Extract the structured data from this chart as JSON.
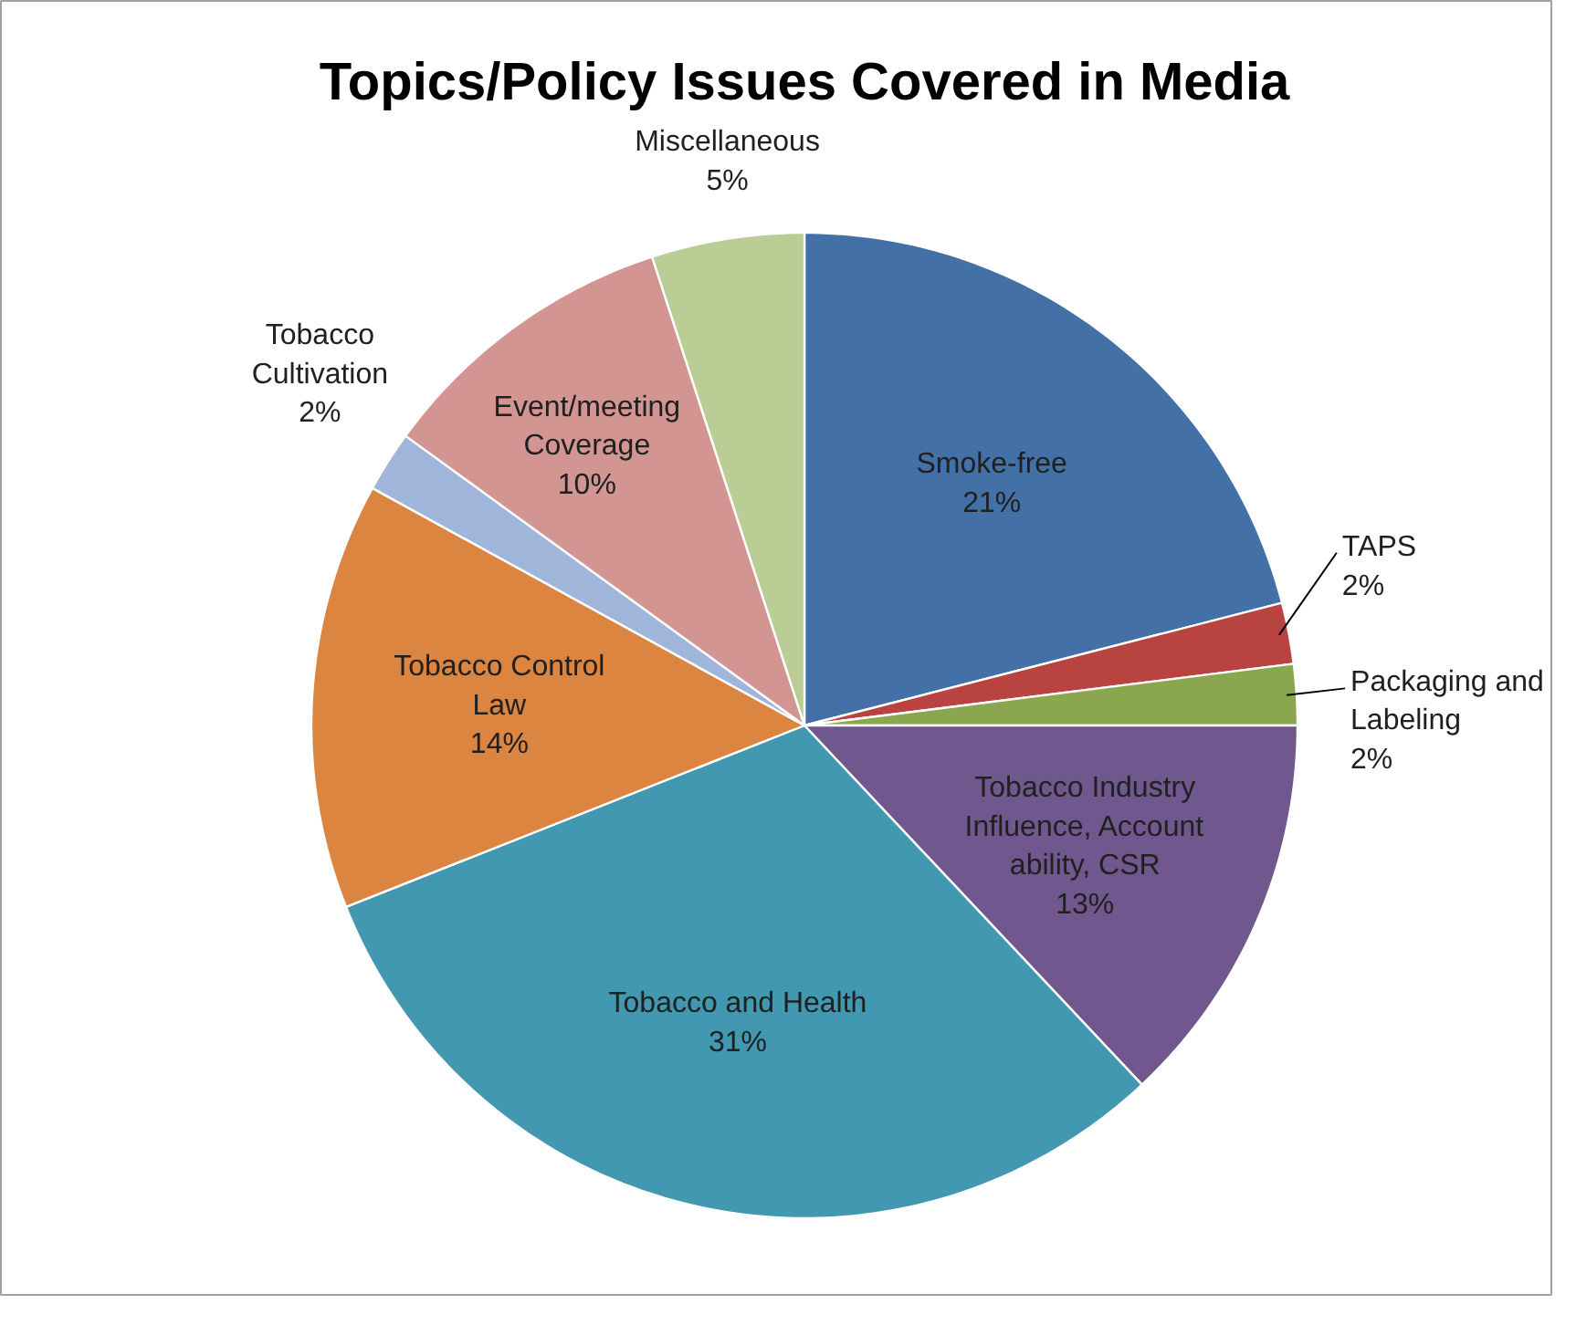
{
  "chart_data": {
    "type": "pie",
    "title": "Topics/Policy Issues Covered in Media",
    "categories": [
      "Smoke-free",
      "TAPS",
      "Packaging and Labeling",
      "Tobacco Industry Influence, Account ability, CSR",
      "Tobacco and Health",
      "Tobacco Control Law",
      "Tobacco Cultivation",
      "Event/meeting Coverage",
      "Miscellaneous"
    ],
    "values": [
      21,
      2,
      2,
      13,
      31,
      14,
      2,
      10,
      5
    ],
    "value_labels": [
      "21%",
      "2%",
      "2%",
      "13%",
      "31%",
      "14%",
      "2%",
      "10%",
      "5%"
    ],
    "colors": [
      "#4470a8",
      "#b94340",
      "#8aa64e",
      "#70588f",
      "#4198b0",
      "#dc8540",
      "#a0b5da",
      "#d39592",
      "#b9cd95"
    ]
  }
}
